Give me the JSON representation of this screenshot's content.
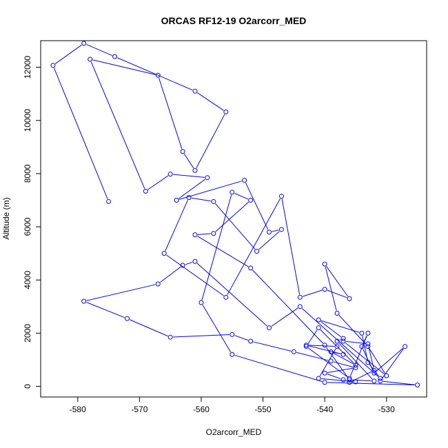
{
  "chart_data": {
    "type": "scatter",
    "title": "ORCAS RF12-19 O2arcorr_MED",
    "xlabel": "O2arcorr_MED",
    "ylabel": "Altitude (m)",
    "xlim": [
      -586,
      -523.5
    ],
    "ylim": [
      -400,
      13000
    ],
    "xticks": [
      -580,
      -570,
      -560,
      -550,
      -540,
      -530
    ],
    "xtick_labels": [
      "-580",
      "-570",
      "-560",
      "-550",
      "-540",
      "-530"
    ],
    "yticks": [
      0,
      2000,
      4000,
      6000,
      8000,
      10000,
      12000
    ],
    "ytick_labels": [
      "0",
      "2000",
      "4000",
      "6000",
      "8000",
      "10000",
      "12000"
    ],
    "grid": false,
    "color": "#0000ff",
    "marker": "open-circle",
    "connected": true,
    "series": [
      {
        "x": [
          -575,
          -584,
          -579,
          -574,
          -561,
          -556,
          -561,
          -563,
          -567,
          -578,
          -569,
          -565,
          -559,
          -564,
          -553,
          -549,
          -547,
          -551,
          -558,
          -562,
          -566,
          -556,
          -547,
          -544,
          -540,
          -536,
          -540,
          -538,
          -533,
          -530,
          -537,
          -533,
          -532,
          -536,
          -535,
          -541,
          -538,
          -543,
          -537,
          -539,
          -535,
          -541,
          -543,
          -536,
          -533,
          -534,
          -532,
          -527,
          -531,
          -525,
          -540,
          -555,
          -560,
          -555,
          -552,
          -558,
          -561,
          -552,
          -540,
          -536,
          -532,
          -538,
          -537,
          -541,
          -534,
          -533,
          -531,
          -544,
          -549,
          -561,
          -563,
          -567,
          -579,
          -572,
          -565,
          -555,
          -552,
          -545,
          -539,
          -535,
          -540,
          -537
        ],
        "y": [
          6950,
          12070,
          12900,
          12400,
          11100,
          10320,
          8120,
          8830,
          11700,
          12300,
          7340,
          7980,
          7850,
          7000,
          7750,
          5800,
          5900,
          5080,
          6950,
          7100,
          5000,
          3350,
          7150,
          3350,
          3650,
          3300,
          4600,
          2750,
          1500,
          400,
          1700,
          1600,
          600,
          150,
          170,
          300,
          1500,
          1550,
          1200,
          1300,
          800,
          2200,
          1500,
          300,
          2000,
          1500,
          500,
          1500,
          200,
          50,
          150,
          1200,
          3150,
          7300,
          7000,
          5750,
          5700,
          4450,
          1550,
          250,
          200,
          1700,
          1800,
          2500,
          2000,
          900,
          300,
          3000,
          2200,
          4700,
          4550,
          3850,
          3200,
          2550,
          1850,
          1950,
          1700,
          1300,
          950,
          700,
          500,
          250
        ]
      }
    ]
  }
}
